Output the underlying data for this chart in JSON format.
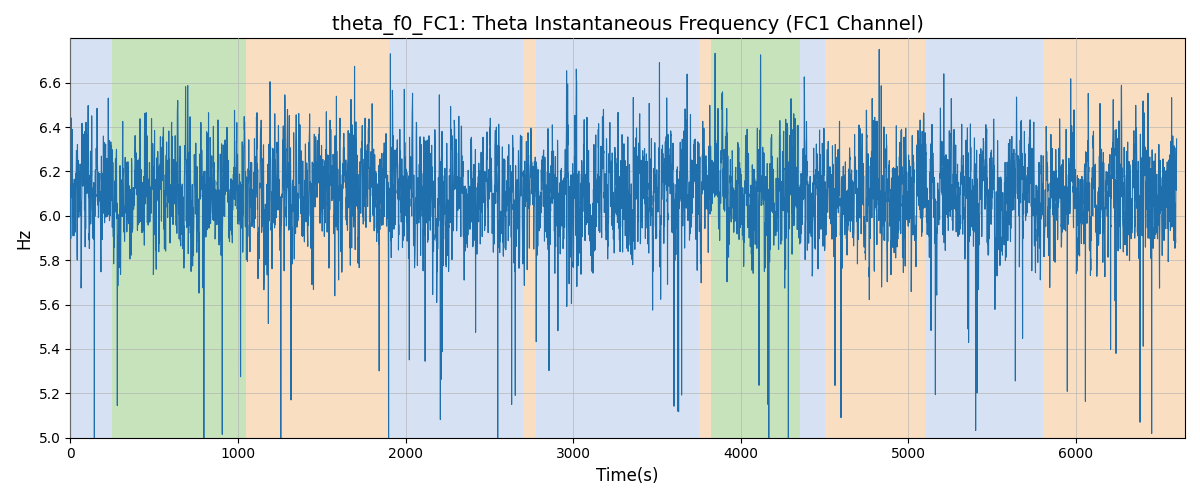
{
  "title": "theta_f0_FC1: Theta Instantaneous Frequency (FC1 Channel)",
  "xlabel": "Time(s)",
  "ylabel": "Hz",
  "ylim": [
    5.0,
    6.8
  ],
  "xlim": [
    0,
    6650
  ],
  "line_color": "#1f6fad",
  "line_width": 0.8,
  "bg_bands": [
    {
      "xmin": 0,
      "xmax": 250,
      "color": "#aec6e8",
      "alpha": 0.5
    },
    {
      "xmin": 250,
      "xmax": 1050,
      "color": "#90c978",
      "alpha": 0.5
    },
    {
      "xmin": 1050,
      "xmax": 1900,
      "color": "#f5c89a",
      "alpha": 0.6
    },
    {
      "xmin": 1900,
      "xmax": 2700,
      "color": "#aec6e8",
      "alpha": 0.5
    },
    {
      "xmin": 2700,
      "xmax": 2780,
      "color": "#f5c89a",
      "alpha": 0.6
    },
    {
      "xmin": 2780,
      "xmax": 3750,
      "color": "#aec6e8",
      "alpha": 0.5
    },
    {
      "xmin": 3750,
      "xmax": 3820,
      "color": "#f5c89a",
      "alpha": 0.6
    },
    {
      "xmin": 3820,
      "xmax": 4350,
      "color": "#90c978",
      "alpha": 0.5
    },
    {
      "xmin": 4350,
      "xmax": 4500,
      "color": "#aec6e8",
      "alpha": 0.5
    },
    {
      "xmin": 4500,
      "xmax": 5100,
      "color": "#f5c89a",
      "alpha": 0.6
    },
    {
      "xmin": 5100,
      "xmax": 5800,
      "color": "#aec6e8",
      "alpha": 0.5
    },
    {
      "xmin": 5800,
      "xmax": 5980,
      "color": "#f5c89a",
      "alpha": 0.6
    },
    {
      "xmin": 5980,
      "xmax": 6650,
      "color": "#f5c89a",
      "alpha": 0.6
    }
  ],
  "seed": 17,
  "n_points": 6600,
  "t_start": 0,
  "t_end": 6600,
  "mean_freq": 6.1,
  "title_fontsize": 14,
  "label_fontsize": 12,
  "grid_color": "#b0b0b0",
  "grid_alpha": 0.7,
  "fig_bg_color": "#ffffff",
  "xticks": [
    0,
    1000,
    2000,
    3000,
    4000,
    5000,
    6000
  ],
  "yticks": [
    5.0,
    5.2,
    5.4,
    5.6,
    5.8,
    6.0,
    6.2,
    6.4,
    6.6
  ]
}
